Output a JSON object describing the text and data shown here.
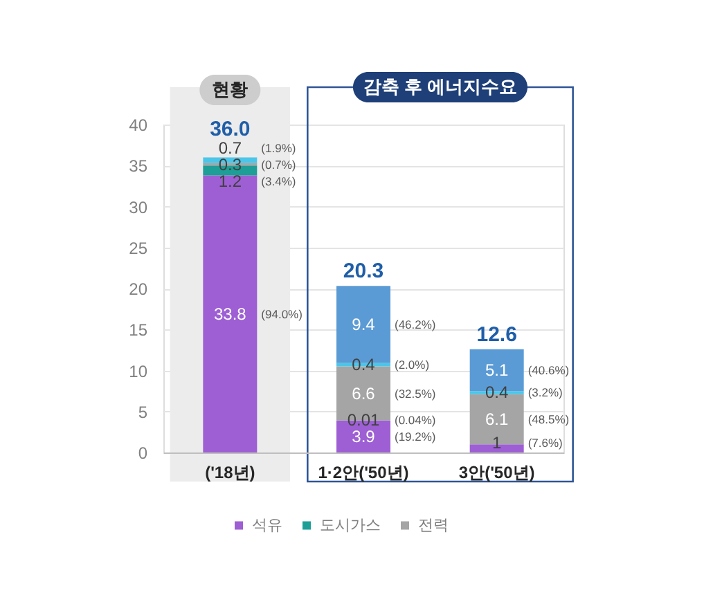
{
  "chart_data": {
    "type": "bar",
    "stacked": true,
    "categories": [
      "('18년)",
      "1·2안('50년)",
      "3안('50년)"
    ],
    "series": [
      {
        "name": "석유",
        "color": "#9d5fd3",
        "values": [
          33.8,
          3.9,
          1
        ]
      },
      {
        "name": "도시가스",
        "color": "#1d9e97",
        "values": [
          1.2,
          0.01,
          null
        ]
      },
      {
        "name": "전력",
        "color": "#a5a5a5",
        "values": [
          0.3,
          6.6,
          6.1
        ]
      },
      {
        "color": "#4bc6e8",
        "values": [
          0.7,
          0.4,
          0.4
        ]
      },
      {
        "color": "#5b9bd5",
        "values": [
          null,
          9.4,
          5.1
        ]
      }
    ],
    "data_labels": true,
    "totals": [
      "36.0",
      "20.3",
      "12.6"
    ],
    "ylim": [
      0,
      40
    ],
    "yticks": [
      0,
      5,
      10,
      15,
      20,
      25,
      30,
      35,
      40
    ],
    "grid": "y",
    "legend": "bottom",
    "bands": [
      {
        "axis": "x",
        "from": "('18년)",
        "to": "('18년)",
        "label": "현황",
        "color": "#ececec"
      }
    ],
    "annotations": [
      "(94.0%)",
      "(3.4%)",
      "(0.7%)",
      "(1.9%)",
      "(19.2%)",
      "(0.04%)",
      "(32.5%)",
      "(2.0%)",
      "(46.2%)",
      "(7.6%)",
      "(48.5%)",
      "(3.2%)",
      "(40.6%)",
      "감축 후 에너지수요"
    ]
  }
}
